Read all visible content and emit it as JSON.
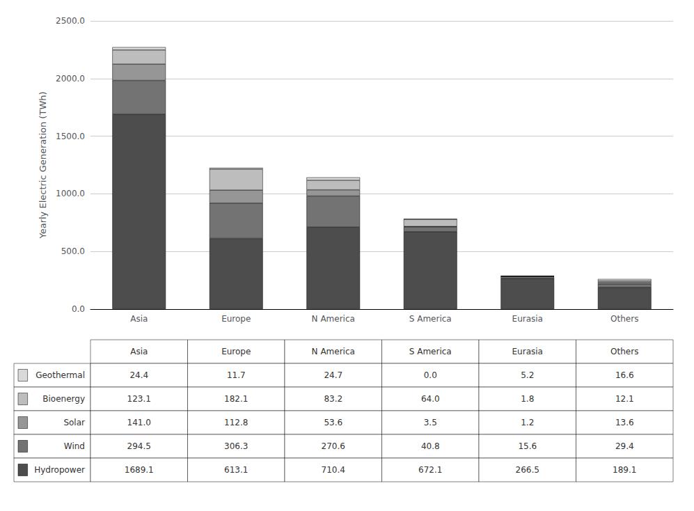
{
  "chart_data": {
    "type": "bar",
    "stacked": true,
    "categories": [
      "Asia",
      "Europe",
      "N America",
      "S America",
      "Eurasia",
      "Others"
    ],
    "series": [
      {
        "name": "Hydropower",
        "color": "#4d4d4d",
        "values": [
          1689.1,
          613.1,
          710.4,
          672.1,
          266.5,
          189.1
        ],
        "value_labels": [
          "1689.1",
          "613.1",
          "710.4",
          "672.1",
          "266.5",
          "189.1"
        ]
      },
      {
        "name": "Wind",
        "color": "#737373",
        "values": [
          294.5,
          306.3,
          270.6,
          40.8,
          15.6,
          29.4
        ],
        "value_labels": [
          "294.5",
          "306.3",
          "270.6",
          "40.8",
          "15.6",
          "29.4"
        ]
      },
      {
        "name": "Solar",
        "color": "#969696",
        "values": [
          141.0,
          112.8,
          53.6,
          3.5,
          1.2,
          13.6
        ],
        "value_labels": [
          "141.0",
          "112.8",
          "53.6",
          "3.5",
          "1.2",
          "13.6"
        ]
      },
      {
        "name": "Bioenergy",
        "color": "#bdbdbd",
        "values": [
          123.1,
          182.1,
          83.2,
          64.0,
          1.8,
          12.1
        ],
        "value_labels": [
          "123.1",
          "182.1",
          "83.2",
          "64.0",
          "1.8",
          "12.1"
        ]
      },
      {
        "name": "Geothermal",
        "color": "#d9d9d9",
        "values": [
          24.4,
          11.7,
          24.7,
          0.0,
          5.2,
          16.6
        ],
        "value_labels": [
          "24.4",
          "11.7",
          "24.7",
          "0.0",
          "5.2",
          "16.6"
        ]
      }
    ],
    "ylabel": "Yearly Electric Generation (TWh)",
    "ylim": [
      0,
      2500
    ],
    "yticks": [
      {
        "value": 0,
        "label": "0.0"
      },
      {
        "value": 500,
        "label": "500.0"
      },
      {
        "value": 1000,
        "label": "1000.0"
      },
      {
        "value": 1500,
        "label": "1500.0"
      },
      {
        "value": 2000,
        "label": "2000.0"
      },
      {
        "value": 2500,
        "label": "2500.0"
      }
    ],
    "grid": true,
    "legend": "bottom"
  }
}
